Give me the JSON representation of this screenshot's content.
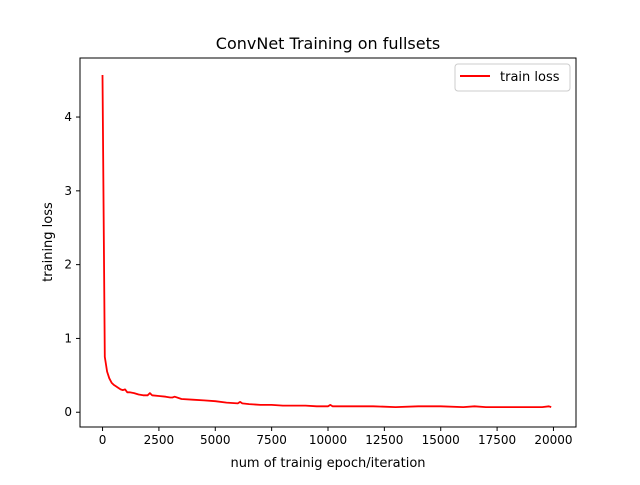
{
  "chart_data": {
    "type": "line",
    "title": "ConvNet Training on fullsets",
    "xlabel": "num of trainig epoch/iteration",
    "ylabel": "training loss",
    "xlim": [
      -1000,
      21000
    ],
    "ylim": [
      -0.2,
      4.8
    ],
    "xticks": [
      0,
      2500,
      5000,
      7500,
      10000,
      12500,
      15000,
      17500,
      20000
    ],
    "yticks": [
      0,
      1,
      2,
      3,
      4
    ],
    "grid": false,
    "legend_position": "top-right",
    "series": [
      {
        "name": "train loss",
        "color": "#ff0000",
        "x": [
          0,
          100,
          200,
          300,
          400,
          500,
          600,
          700,
          800,
          900,
          1000,
          1100,
          1200,
          1400,
          1600,
          1800,
          2000,
          2100,
          2200,
          2500,
          2800,
          3000,
          3100,
          3200,
          3500,
          4000,
          4500,
          5000,
          5500,
          6000,
          6100,
          6200,
          6500,
          7000,
          7500,
          8000,
          8500,
          9000,
          9500,
          10000,
          10100,
          10200,
          10500,
          11000,
          12000,
          13000,
          14000,
          15000,
          16000,
          16500,
          17000,
          18000,
          19000,
          19500,
          19800,
          19900
        ],
        "y": [
          4.57,
          0.75,
          0.55,
          0.46,
          0.4,
          0.37,
          0.35,
          0.33,
          0.31,
          0.3,
          0.31,
          0.27,
          0.27,
          0.26,
          0.24,
          0.23,
          0.23,
          0.26,
          0.23,
          0.22,
          0.21,
          0.2,
          0.2,
          0.21,
          0.18,
          0.17,
          0.16,
          0.15,
          0.13,
          0.12,
          0.14,
          0.12,
          0.11,
          0.1,
          0.1,
          0.09,
          0.09,
          0.09,
          0.08,
          0.08,
          0.1,
          0.08,
          0.08,
          0.08,
          0.08,
          0.07,
          0.08,
          0.08,
          0.07,
          0.08,
          0.07,
          0.07,
          0.07,
          0.07,
          0.08,
          0.07
        ]
      }
    ]
  }
}
